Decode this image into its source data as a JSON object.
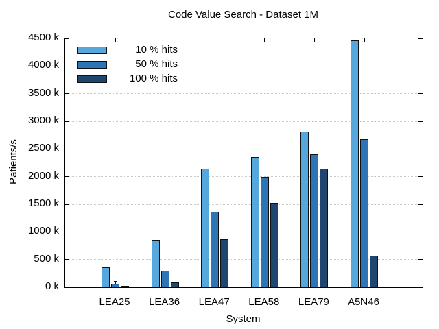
{
  "chart_data": {
    "type": "bar",
    "title": "Code Value Search - Dataset 1M",
    "xlabel": "System",
    "ylabel": "Patients/s",
    "categories": [
      "LEA25",
      "LEA36",
      "LEA47",
      "LEA58",
      "LEA79",
      "A5N46"
    ],
    "series": [
      {
        "name": "10 % hits",
        "color": "#56a8dc",
        "values": [
          360,
          850,
          2140,
          2360,
          2820,
          4460
        ]
      },
      {
        "name": "50 % hits",
        "color": "#2e75b5",
        "values": [
          60,
          300,
          1360,
          2000,
          2410,
          2680
        ]
      },
      {
        "name": "100 % hits",
        "color": "#1f4571",
        "values": [
          30,
          90,
          870,
          1530,
          2140,
          570
        ]
      }
    ],
    "value_unit": "k Patients/s",
    "ylim": [
      0,
      4500
    ],
    "ytick_step": 500,
    "ytick_labels": [
      "0 k",
      "500 k",
      "1000 k",
      "1500 k",
      "2000 k",
      "2500 k",
      "3000 k",
      "3500 k",
      "4000 k",
      "4500 k"
    ],
    "grid": "horizontal-dotted",
    "legend_position": "top-left-inside",
    "error_whisker": {
      "category": "LEA25",
      "series": "50 % hits",
      "top_value": 105
    }
  },
  "colors": {
    "frame": "#000000",
    "gridline": "#c9c9c9",
    "background": "#ffffff"
  }
}
